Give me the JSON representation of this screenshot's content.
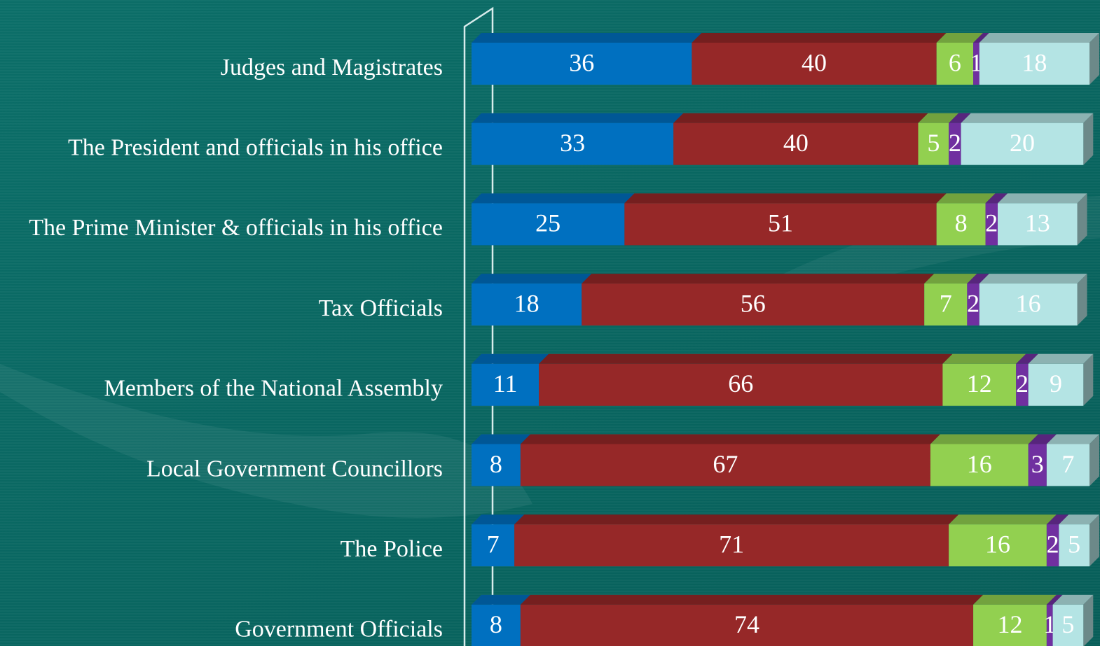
{
  "chart_data": {
    "type": "stacked-bar-horizontal",
    "categories": [
      "Judges and Magistrates",
      "The President and officials in his office",
      "The Prime Minister & officials in his office",
      "Tax Officials",
      "Members of the National Assembly",
      "Local Government Councillors",
      "The Police",
      "Government Officials"
    ],
    "series": [
      {
        "color": "#0070c0",
        "values": [
          36,
          33,
          25,
          18,
          11,
          8,
          7,
          8
        ]
      },
      {
        "color": "#962828",
        "values": [
          40,
          40,
          51,
          56,
          66,
          67,
          71,
          74
        ]
      },
      {
        "color": "#92d050",
        "values": [
          6,
          5,
          8,
          7,
          12,
          16,
          16,
          12
        ]
      },
      {
        "color": "#7030a0",
        "values": [
          1,
          2,
          2,
          2,
          2,
          3,
          2,
          1
        ]
      },
      {
        "color": "#b4e4e4",
        "values": [
          18,
          20,
          13,
          16,
          9,
          7,
          5,
          5
        ]
      }
    ],
    "xlim": [
      0,
      101
    ]
  }
}
